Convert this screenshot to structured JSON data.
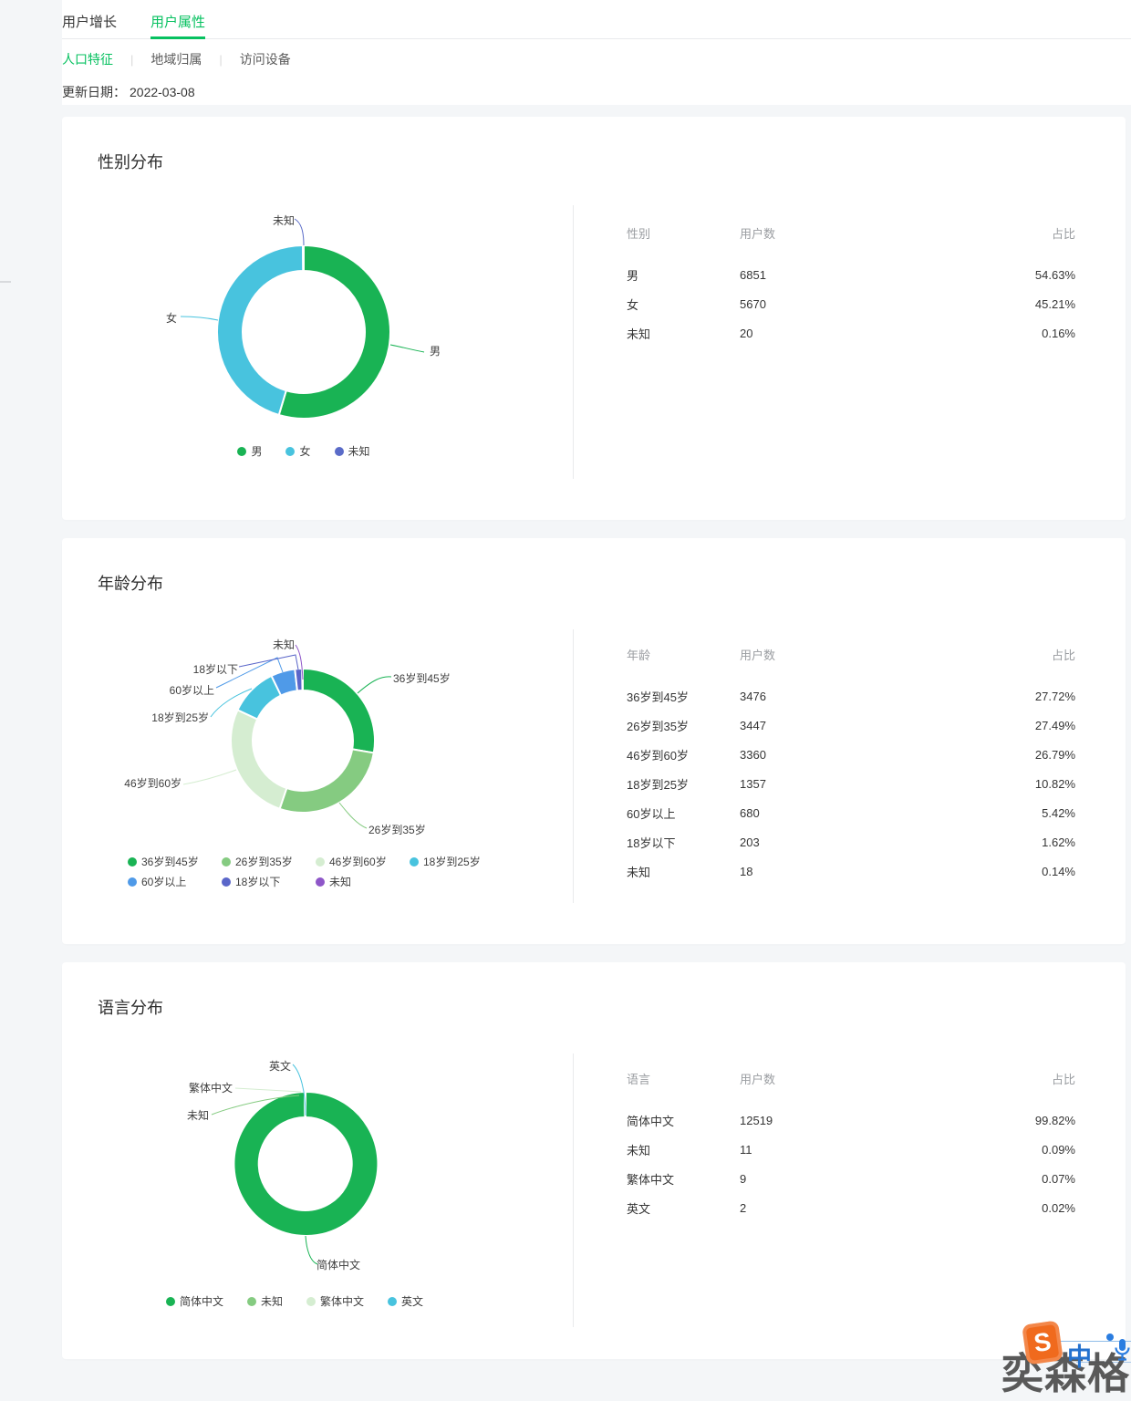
{
  "header": {
    "tabs": [
      {
        "label": "用户增长"
      },
      {
        "label": "用户属性"
      }
    ],
    "active_tab": "用户属性",
    "subtabs": [
      {
        "label": "人口特征"
      },
      {
        "label": "地域归属"
      },
      {
        "label": "访问设备"
      }
    ],
    "active_subtab": "人口特征",
    "update_label": "更新日期：",
    "update_date": "2022-03-08"
  },
  "colors": {
    "accent_green": "#07c160",
    "page_bg": "#f4f6f8",
    "text_dark": "#353535",
    "text_gray": "#9a9da1",
    "divider": "#e9eaec"
  },
  "charts": [
    {
      "id": "gender",
      "title": "性别分布",
      "columns": [
        "性别",
        "用户数",
        "占比"
      ],
      "rows": [
        {
          "label": "男",
          "count": "6851",
          "pct": "54.63%"
        },
        {
          "label": "女",
          "count": "5670",
          "pct": "45.21%"
        },
        {
          "label": "未知",
          "count": "20",
          "pct": "0.16%"
        }
      ],
      "slices": [
        {
          "name": "男",
          "value": 54.63,
          "color": "#19b354"
        },
        {
          "name": "女",
          "value": 45.21,
          "color": "#48c3de"
        },
        {
          "name": "未知",
          "value": 0.16,
          "color": "#5a6bc8"
        }
      ]
    },
    {
      "id": "age",
      "title": "年龄分布",
      "columns": [
        "年龄",
        "用户数",
        "占比"
      ],
      "rows": [
        {
          "label": "36岁到45岁",
          "count": "3476",
          "pct": "27.72%"
        },
        {
          "label": "26岁到35岁",
          "count": "3447",
          "pct": "27.49%"
        },
        {
          "label": "46岁到60岁",
          "count": "3360",
          "pct": "26.79%"
        },
        {
          "label": "18岁到25岁",
          "count": "1357",
          "pct": "10.82%"
        },
        {
          "label": "60岁以上",
          "count": "680",
          "pct": "5.42%"
        },
        {
          "label": "18岁以下",
          "count": "203",
          "pct": "1.62%"
        },
        {
          "label": "未知",
          "count": "18",
          "pct": "0.14%"
        }
      ],
      "slices": [
        {
          "name": "36岁到45岁",
          "value": 27.72,
          "color": "#19b354"
        },
        {
          "name": "26岁到35岁",
          "value": 27.49,
          "color": "#85cb81"
        },
        {
          "name": "46岁到60岁",
          "value": 26.79,
          "color": "#d5edd1"
        },
        {
          "name": "18岁到25岁",
          "value": 10.82,
          "color": "#48c3de"
        },
        {
          "name": "60岁以上",
          "value": 5.42,
          "color": "#4f9ae8"
        },
        {
          "name": "18岁以下",
          "value": 1.62,
          "color": "#5a66c9"
        },
        {
          "name": "未知",
          "value": 0.14,
          "color": "#8e56c8"
        }
      ]
    },
    {
      "id": "language",
      "title": "语言分布",
      "columns": [
        "语言",
        "用户数",
        "占比"
      ],
      "rows": [
        {
          "label": "简体中文",
          "count": "12519",
          "pct": "99.82%"
        },
        {
          "label": "未知",
          "count": "11",
          "pct": "0.09%"
        },
        {
          "label": "繁体中文",
          "count": "9",
          "pct": "0.07%"
        },
        {
          "label": "英文",
          "count": "2",
          "pct": "0.02%"
        }
      ],
      "slices": [
        {
          "name": "简体中文",
          "value": 99.82,
          "color": "#19b354"
        },
        {
          "name": "未知",
          "value": 0.09,
          "color": "#85cb81"
        },
        {
          "name": "繁体中文",
          "value": 0.07,
          "color": "#d5edd1"
        },
        {
          "name": "英文",
          "value": 0.02,
          "color": "#48c3de"
        }
      ]
    }
  ],
  "chart_data": [
    {
      "type": "pie",
      "title": "性别分布",
      "labels": [
        "男",
        "女",
        "未知"
      ],
      "values": [
        6851,
        5670,
        20
      ],
      "percentages": [
        54.63,
        45.21,
        0.16
      ],
      "legend_position": "bottom"
    },
    {
      "type": "pie",
      "title": "年龄分布",
      "labels": [
        "36岁到45岁",
        "26岁到35岁",
        "46岁到60岁",
        "18岁到25岁",
        "60岁以上",
        "18岁以下",
        "未知"
      ],
      "values": [
        3476,
        3447,
        3360,
        1357,
        680,
        203,
        18
      ],
      "percentages": [
        27.72,
        27.49,
        26.79,
        10.82,
        5.42,
        1.62,
        0.14
      ],
      "legend_position": "bottom"
    },
    {
      "type": "pie",
      "title": "语言分布",
      "labels": [
        "简体中文",
        "未知",
        "繁体中文",
        "英文"
      ],
      "values": [
        12519,
        11,
        9,
        2
      ],
      "percentages": [
        99.82,
        0.09,
        0.07,
        0.02
      ],
      "legend_position": "bottom"
    }
  ],
  "watermark": {
    "text": "奕森格",
    "ime_mode": "中"
  }
}
